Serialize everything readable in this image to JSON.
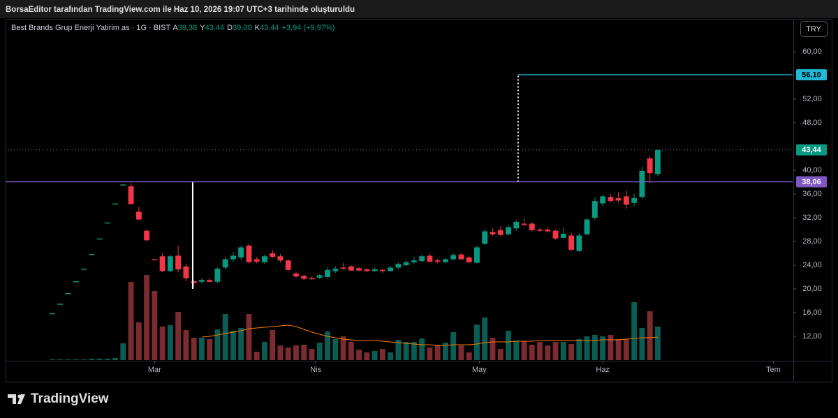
{
  "header": {
    "title": "BorsaEditor tarafından TradingView.com ile Haz 10, 2026 19:07 UTC+3 tarihinde oluşturuldu",
    "symbol": "Best Brands Grup Enerji Yatirim as · 1G · BIST",
    "ohlc": [
      {
        "key": "A",
        "value": "39,38"
      },
      {
        "key": "Y",
        "value": "43,44"
      },
      {
        "key": "D",
        "value": "39,00"
      },
      {
        "key": "K",
        "value": "43,44"
      }
    ],
    "change": "+3,94 (+9,97%)",
    "currency": "TRY"
  },
  "footer": {
    "logo": "TradingView"
  },
  "chart_data": {
    "type": "candlestick",
    "xlim": [
      -5.95,
      94.15
    ],
    "xticks": [
      {
        "value": 13,
        "label": "Mar"
      },
      {
        "value": 33.5,
        "label": "Nis"
      },
      {
        "value": 54.3,
        "label": "May"
      },
      {
        "value": 70,
        "label": "Haz"
      },
      {
        "value": 91.7,
        "label": "Tem"
      }
    ],
    "ylim": [
      8.0,
      65.41
    ],
    "yticks": [
      {
        "value": 60,
        "label": "60,00"
      },
      {
        "value": 52,
        "label": "52,00"
      },
      {
        "value": 48,
        "label": "48,00"
      },
      {
        "value": 40,
        "label": "40,00"
      },
      {
        "value": 36,
        "label": "36,00"
      },
      {
        "value": 32,
        "label": "32,00"
      },
      {
        "value": 28,
        "label": "28,00"
      },
      {
        "value": 24,
        "label": "24,00"
      },
      {
        "value": 20,
        "label": "20,00"
      },
      {
        "value": 16,
        "label": "16,00"
      },
      {
        "value": 12,
        "label": "12,00"
      }
    ],
    "grid": false,
    "up_color": "#089981",
    "down_color": "#f23645",
    "volume_up_color": "#0b5c52",
    "volume_down_color": "#7c2b30",
    "volume_ma_color": "#f57c00",
    "volume_lim": [
      0,
      488
    ],
    "open": [
      15.9,
      17.5,
      19.3,
      21.3,
      23.4,
      25.9,
      28.5,
      31.2,
      34.4,
      37.6,
      37.3,
      33.0,
      29.8,
      25.0,
      25.5,
      23.0,
      25.6,
      23.8,
      21.3,
      21.2,
      21.5,
      21.2,
      23.6,
      25.0,
      25.3,
      27.3,
      25.0,
      24.5,
      26.0,
      25.5,
      24.8,
      22.6,
      22.2,
      21.8,
      21.9,
      22.0,
      23.0,
      23.6,
      23.8,
      23.5,
      23.3,
      23.0,
      23.2,
      23.0,
      23.6,
      24.0,
      24.5,
      24.7,
      25.6,
      24.8,
      24.5,
      25.0,
      25.8,
      25.3,
      24.4,
      27.6,
      29.6,
      29.9,
      29.2,
      30.2,
      31.0,
      31.0,
      30.0,
      30.0,
      29.8,
      28.6,
      29.0,
      26.4,
      29.2,
      32.0,
      34.4,
      35.5,
      35.3,
      35.6,
      34.5,
      35.5,
      42.0,
      39.38
    ],
    "high": [
      15.9,
      17.5,
      19.3,
      21.3,
      23.4,
      25.9,
      28.5,
      31.2,
      34.4,
      37.6,
      37.8,
      33.8,
      30.0,
      25.0,
      26.0,
      25.8,
      27.3,
      24.2,
      21.5,
      21.8,
      21.8,
      23.6,
      25.4,
      26.2,
      27.3,
      27.6,
      25.4,
      25.8,
      26.6,
      25.9,
      25.0,
      22.9,
      22.4,
      22.1,
      22.5,
      23.6,
      23.8,
      24.4,
      24.0,
      23.7,
      23.5,
      23.6,
      23.4,
      23.8,
      24.4,
      24.9,
      25.4,
      25.8,
      25.9,
      25.1,
      25.2,
      26.0,
      26.0,
      25.6,
      27.3,
      30.1,
      30.3,
      30.5,
      30.8,
      31.6,
      32.0,
      31.3,
      30.3,
      30.4,
      30.0,
      30.4,
      29.5,
      29.4,
      32.0,
      35.3,
      35.9,
      36.0,
      36.3,
      36.6,
      36.0,
      40.6,
      42.4,
      43.44
    ],
    "low": [
      15.9,
      17.5,
      19.3,
      21.3,
      23.4,
      25.9,
      28.5,
      31.2,
      34.4,
      37.6,
      34.2,
      31.6,
      28.1,
      24.9,
      22.8,
      22.8,
      22.8,
      21.3,
      20.3,
      20.9,
      21.0,
      21.0,
      23.3,
      24.6,
      24.9,
      24.3,
      24.3,
      24.2,
      25.2,
      24.5,
      23.0,
      21.9,
      21.5,
      21.5,
      21.7,
      21.8,
      22.7,
      23.2,
      23.0,
      23.0,
      22.8,
      22.9,
      22.7,
      22.9,
      23.3,
      23.8,
      24.2,
      24.5,
      24.4,
      24.3,
      24.3,
      24.8,
      24.9,
      24.3,
      24.3,
      27.4,
      29.0,
      28.9,
      29.0,
      29.8,
      30.5,
      29.7,
      29.6,
      29.5,
      28.3,
      28.5,
      26.4,
      26.2,
      29.0,
      31.6,
      34.0,
      34.6,
      34.5,
      33.5,
      34.0,
      35.2,
      37.9,
      39.0
    ],
    "close": [
      15.9,
      17.5,
      19.3,
      21.3,
      23.4,
      25.9,
      28.5,
      31.2,
      34.4,
      37.6,
      34.3,
      31.7,
      28.2,
      24.9,
      23.0,
      25.5,
      23.3,
      21.8,
      21.0,
      21.5,
      21.2,
      23.4,
      25.0,
      25.6,
      27.0,
      24.5,
      24.6,
      25.5,
      25.4,
      24.8,
      23.2,
      22.1,
      21.7,
      21.7,
      22.3,
      23.2,
      23.4,
      23.4,
      23.1,
      23.1,
      23.0,
      23.3,
      23.0,
      23.6,
      24.2,
      24.5,
      24.8,
      25.5,
      24.6,
      24.6,
      25.0,
      25.7,
      25.0,
      24.5,
      27.0,
      29.7,
      29.2,
      29.1,
      30.4,
      31.3,
      30.8,
      29.9,
      29.8,
      29.7,
      28.5,
      29.3,
      26.6,
      29.0,
      31.7,
      34.8,
      35.6,
      34.8,
      34.9,
      34.2,
      35.3,
      39.9,
      39.5,
      43.44
    ],
    "volume": [
      1,
      1,
      1,
      1,
      1,
      2,
      2,
      2,
      3,
      24,
      112,
      54,
      122,
      99,
      48,
      50,
      69,
      43,
      32,
      32,
      30,
      44,
      66,
      42,
      46,
      66,
      12,
      26,
      43,
      21,
      18,
      21,
      22,
      16,
      25,
      41,
      30,
      34,
      26,
      15,
      11,
      13,
      16,
      11,
      29,
      26,
      26,
      31,
      18,
      22,
      25,
      40,
      21,
      11,
      51,
      61,
      32,
      16,
      42,
      28,
      27,
      22,
      26,
      21,
      26,
      26,
      23,
      30,
      34,
      36,
      34,
      36,
      30,
      30,
      83,
      46,
      70,
      48
    ],
    "volume_ma": [
      null,
      null,
      null,
      null,
      null,
      null,
      null,
      null,
      null,
      null,
      null,
      null,
      null,
      null,
      null,
      null,
      null,
      null,
      null,
      33,
      34,
      36,
      38,
      40,
      42,
      45,
      46,
      47,
      48,
      49,
      50,
      48,
      44,
      40,
      37,
      34,
      32,
      30,
      29,
      28,
      28,
      28,
      27,
      26,
      25,
      24,
      23,
      22,
      22,
      21,
      21,
      22,
      22,
      22,
      23,
      25,
      26,
      26,
      26,
      27,
      27,
      27,
      28,
      28,
      28,
      28,
      28,
      28,
      28,
      28,
      29,
      29,
      29,
      30,
      31,
      32,
      32,
      33
    ],
    "price_lines": [
      {
        "value": 38.06,
        "label": "38,06",
        "color": "#7e57c2",
        "text_color": "#ffffff"
      },
      {
        "value": 56.1,
        "label": "56,10",
        "color": "#22b8d6",
        "text_color": "#000000",
        "from_x": 59.24
      },
      {
        "value": 43.44,
        "label": "43,44",
        "color": "#089981",
        "text_color": "#ffffff",
        "dotted": true
      }
    ],
    "vertical_lines": [
      {
        "x": 17.85,
        "from": 20.0,
        "to": 38.06,
        "color": "#ffffff"
      },
      {
        "x": 59.24,
        "from": 38.06,
        "to": 56.1,
        "color": "#ffffff",
        "dotted": true
      }
    ]
  }
}
